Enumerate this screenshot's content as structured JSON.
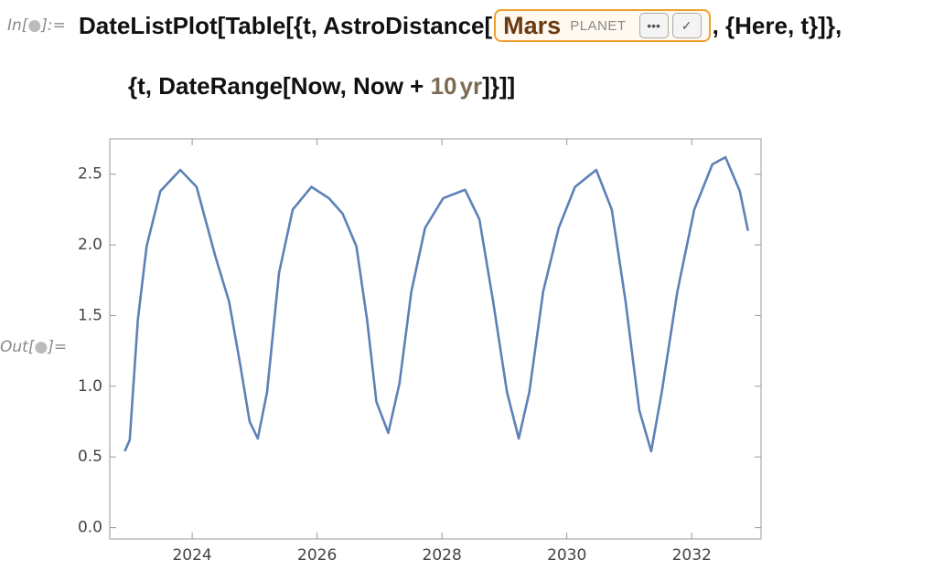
{
  "input": {
    "label_open": "In[",
    "label_close": "]:=",
    "line1_start": "DateListPlot[Table[{t, AstroDistance[",
    "entity": {
      "name": "Mars",
      "type": "PLANET",
      "more": "•••",
      "check": "✓"
    },
    "line1_end": ", {Here, t}]},",
    "line2_start": "{t, DateRange[Now, Now + ",
    "quantity_value": "10",
    "quantity_unit": "yr",
    "line2_end": "]}]]"
  },
  "output": {
    "label_open": "Out[",
    "label_close": "]="
  },
  "chart_data": {
    "type": "line",
    "x": [
      2022.92,
      2023.0,
      2023.13,
      2023.27,
      2023.49,
      2023.81,
      2024.07,
      2024.37,
      2024.59,
      2024.77,
      2024.92,
      2025.05,
      2025.2,
      2025.39,
      2025.61,
      2025.91,
      2026.19,
      2026.41,
      2026.63,
      2026.8,
      2026.95,
      2027.14,
      2027.32,
      2027.51,
      2027.73,
      2028.02,
      2028.37,
      2028.6,
      2028.82,
      2029.04,
      2029.23,
      2029.4,
      2029.62,
      2029.87,
      2030.13,
      2030.47,
      2030.72,
      2030.94,
      2031.16,
      2031.35,
      2031.52,
      2031.77,
      2032.04,
      2032.33,
      2032.54,
      2032.77,
      2032.9
    ],
    "series": [
      {
        "color": "#5e81b5",
        "values": [
          0.54,
          0.62,
          1.47,
          1.99,
          2.38,
          2.53,
          2.41,
          1.92,
          1.6,
          1.15,
          0.75,
          0.63,
          0.96,
          1.8,
          2.25,
          2.41,
          2.33,
          2.22,
          1.99,
          1.47,
          0.89,
          0.67,
          1.02,
          1.67,
          2.12,
          2.33,
          2.39,
          2.18,
          1.6,
          0.96,
          0.63,
          0.96,
          1.67,
          2.12,
          2.41,
          2.53,
          2.25,
          1.6,
          0.83,
          0.54,
          0.96,
          1.67,
          2.25,
          2.57,
          2.62,
          2.38,
          2.1
        ]
      }
    ],
    "xlim": [
      2022.68,
      2033.11
    ],
    "xticks": [
      2024,
      2026,
      2028,
      2030,
      2032
    ],
    "ylim": [
      -0.08,
      2.75
    ],
    "yticks": [
      {
        "value": 0,
        "label": "0.0"
      },
      {
        "value": 0.5,
        "label": "0.5"
      },
      {
        "value": 1,
        "label": "1.0"
      },
      {
        "value": 1.5,
        "label": "1.5"
      },
      {
        "value": 2,
        "label": "2.0"
      },
      {
        "value": 2.5,
        "label": "2.5"
      }
    ]
  }
}
